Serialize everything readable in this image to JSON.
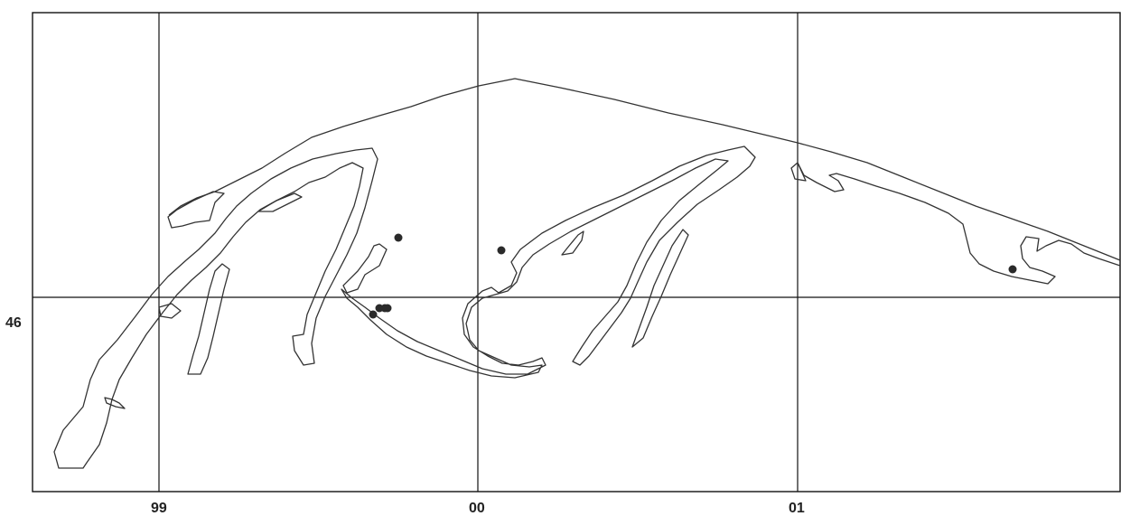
{
  "map": {
    "x_tick_labels": [
      "99",
      "00",
      "01"
    ],
    "y_tick_labels": [
      "46"
    ],
    "colors": {
      "ink": "#111111",
      "coastline": "#333333",
      "marker": "#2a2a2a",
      "background": "#ffffff"
    },
    "marker_shape": "filled-circle",
    "marker_count": 8
  }
}
